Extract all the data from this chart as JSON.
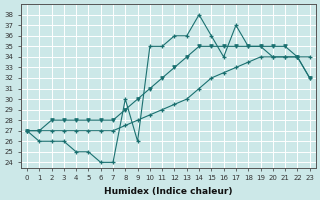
{
  "xlabel": "Humidex (Indice chaleur)",
  "background_color": "#cce8e8",
  "grid_color": "#ffffff",
  "line_color": "#1a7070",
  "xlim": [
    -0.5,
    23.5
  ],
  "ylim": [
    23.5,
    39.0
  ],
  "xticks": [
    0,
    1,
    2,
    3,
    4,
    5,
    6,
    7,
    8,
    9,
    10,
    11,
    12,
    13,
    14,
    15,
    16,
    17,
    18,
    19,
    20,
    21,
    22,
    23
  ],
  "yticks": [
    24,
    25,
    26,
    27,
    28,
    29,
    30,
    31,
    32,
    33,
    34,
    35,
    36,
    37,
    38
  ],
  "series1": [
    27,
    26,
    26,
    26,
    25,
    25,
    24,
    24,
    30,
    26,
    35,
    35,
    36,
    36,
    38,
    36,
    34,
    37,
    35,
    35,
    34,
    34,
    34,
    34
  ],
  "series2": [
    27,
    27,
    27,
    27,
    27,
    27,
    27,
    27,
    27.5,
    28,
    28.5,
    29,
    29.5,
    30,
    31,
    32,
    32.5,
    33,
    33.5,
    34,
    34,
    34,
    34,
    32
  ],
  "series3": [
    27,
    27,
    28,
    28,
    28,
    28,
    28,
    28,
    29,
    30,
    31,
    32,
    33,
    34,
    35,
    35,
    35,
    35,
    35,
    35,
    35,
    35,
    34,
    32
  ]
}
